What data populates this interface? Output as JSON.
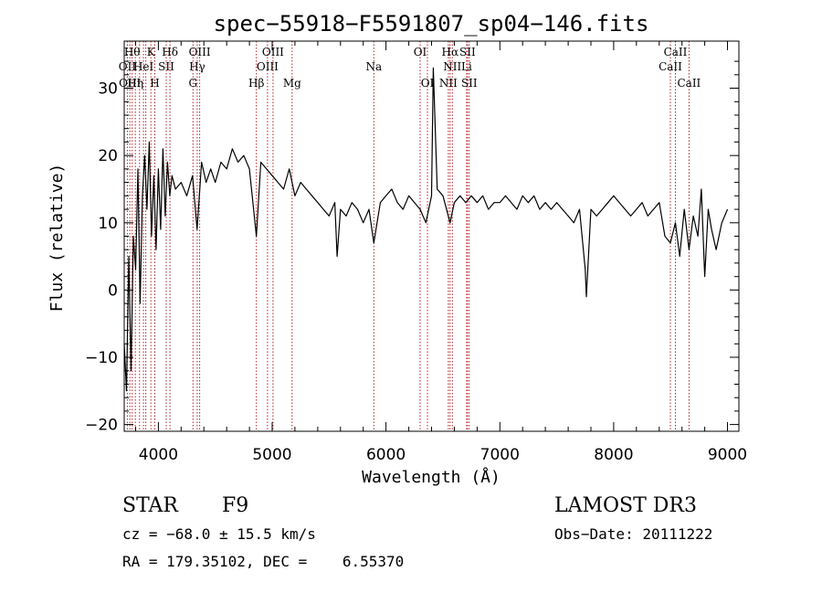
{
  "chart_data": {
    "type": "line",
    "title": "spec−55918−F5591807_sp04−146.fits",
    "xlabel": "Wavelength (Å)",
    "ylabel": "Flux (relative)",
    "xlim": [
      3700,
      9100
    ],
    "ylim": [
      -21,
      37
    ],
    "xticks": [
      4000,
      5000,
      6000,
      7000,
      8000,
      9000
    ],
    "yticks": [
      -20,
      -10,
      0,
      10,
      20,
      30
    ],
    "ytick_labels": [
      "−20",
      "−10",
      "0",
      "10",
      "20",
      "30"
    ],
    "series": [
      {
        "name": "flux",
        "x": [
          3700,
          3720,
          3740,
          3760,
          3780,
          3800,
          3820,
          3840,
          3860,
          3880,
          3900,
          3920,
          3940,
          3960,
          3980,
          4000,
          4020,
          4040,
          4060,
          4080,
          4100,
          4120,
          4150,
          4200,
          4250,
          4300,
          4340,
          4380,
          4420,
          4460,
          4500,
          4550,
          4600,
          4650,
          4700,
          4750,
          4800,
          4861,
          4900,
          4950,
          5000,
          5050,
          5100,
          5150,
          5200,
          5250,
          5300,
          5350,
          5400,
          5450,
          5500,
          5550,
          5570,
          5600,
          5650,
          5700,
          5750,
          5800,
          5850,
          5893,
          5950,
          6000,
          6050,
          6100,
          6150,
          6200,
          6250,
          6300,
          6350,
          6400,
          6415,
          6450,
          6500,
          6563,
          6600,
          6650,
          6700,
          6750,
          6800,
          6850,
          6900,
          6950,
          7000,
          7050,
          7100,
          7150,
          7200,
          7250,
          7300,
          7350,
          7400,
          7450,
          7500,
          7550,
          7600,
          7650,
          7700,
          7750,
          7760,
          7800,
          7850,
          7900,
          7950,
          8000,
          8050,
          8100,
          8150,
          8200,
          8250,
          8300,
          8350,
          8400,
          8450,
          8498,
          8542,
          8580,
          8620,
          8662,
          8700,
          8740,
          8770,
          8800,
          8830,
          8860,
          8900,
          8950,
          9000
        ],
        "y": [
          -8,
          -15,
          5,
          -12,
          8,
          3,
          18,
          -2,
          14,
          20,
          12,
          22,
          8,
          17,
          6,
          18,
          9,
          21,
          11,
          19,
          14,
          17,
          15,
          16,
          14,
          17,
          9,
          19,
          16,
          18,
          16,
          19,
          18,
          21,
          19,
          20,
          18,
          8,
          19,
          18,
          17,
          16,
          15,
          18,
          14,
          16,
          15,
          14,
          13,
          12,
          11,
          13,
          5,
          12,
          11,
          13,
          12,
          10,
          12,
          7,
          13,
          14,
          15,
          13,
          12,
          14,
          13,
          12,
          10,
          14,
          33,
          15,
          14,
          10,
          13,
          14,
          13,
          14,
          13,
          14,
          12,
          13,
          13,
          14,
          13,
          12,
          14,
          13,
          14,
          12,
          13,
          12,
          13,
          12,
          11,
          10,
          12,
          3,
          -1,
          12,
          11,
          12,
          13,
          14,
          13,
          12,
          11,
          12,
          13,
          11,
          12,
          13,
          8,
          7,
          10,
          5,
          12,
          6,
          11,
          8,
          15,
          2,
          12,
          9,
          6,
          10,
          12
        ]
      }
    ],
    "lines": [
      {
        "wavelength": 3727,
        "label": "OII"
      },
      {
        "wavelength": 3750,
        "label": "OIII"
      },
      {
        "wavelength": 3770,
        "label": "Hθ"
      },
      {
        "wavelength": 3798,
        "label": "Hη"
      },
      {
        "wavelength": 3835,
        "label": "Hη"
      },
      {
        "wavelength": 3869,
        "label": "HeI"
      },
      {
        "wavelength": 3889,
        "label": "HeI"
      },
      {
        "wavelength": 3934,
        "label": "K"
      },
      {
        "wavelength": 3969,
        "label": "H"
      },
      {
        "wavelength": 4069,
        "label": "SII"
      },
      {
        "wavelength": 4102,
        "label": "Hδ"
      },
      {
        "wavelength": 4304,
        "label": "G"
      },
      {
        "wavelength": 4341,
        "label": "Hγ"
      },
      {
        "wavelength": 4363,
        "label": "OIII"
      },
      {
        "wavelength": 4861,
        "label": "Hβ"
      },
      {
        "wavelength": 4959,
        "label": "OIII"
      },
      {
        "wavelength": 5007,
        "label": "OIII"
      },
      {
        "wavelength": 5175,
        "label": "Mg"
      },
      {
        "wavelength": 5893,
        "label": "Na"
      },
      {
        "wavelength": 6300,
        "label": "OI"
      },
      {
        "wavelength": 6364,
        "label": "OI"
      },
      {
        "wavelength": 6548,
        "label": "NII"
      },
      {
        "wavelength": 6563,
        "label": "Hα"
      },
      {
        "wavelength": 6583,
        "label": "NII"
      },
      {
        "wavelength": 6708,
        "label": "Li"
      },
      {
        "wavelength": 6716,
        "label": "SII"
      },
      {
        "wavelength": 6731,
        "label": "SII"
      },
      {
        "wavelength": 8498,
        "label": "CaII"
      },
      {
        "wavelength": 8542,
        "label": "CaII"
      },
      {
        "wavelength": 8662,
        "label": "CaII"
      }
    ],
    "line_labels": [
      {
        "text": "Hθ",
        "wavelength": 3770,
        "row": 0
      },
      {
        "text": "K",
        "wavelength": 3934,
        "row": 0
      },
      {
        "text": "Hδ",
        "wavelength": 4102,
        "row": 0
      },
      {
        "text": "OIII",
        "wavelength": 4363,
        "row": 0
      },
      {
        "text": "OIII",
        "wavelength": 5007,
        "row": 0
      },
      {
        "text": "OI",
        "wavelength": 6300,
        "row": 0
      },
      {
        "text": "Hα",
        "wavelength": 6563,
        "row": 0
      },
      {
        "text": "SII",
        "wavelength": 6716,
        "row": 0
      },
      {
        "text": "CaII",
        "wavelength": 8542,
        "row": 0
      },
      {
        "text": "OII",
        "wavelength": 3727,
        "row": 1
      },
      {
        "text": "HeI",
        "wavelength": 3869,
        "row": 1
      },
      {
        "text": "SII",
        "wavelength": 4069,
        "row": 1
      },
      {
        "text": "Hγ",
        "wavelength": 4341,
        "row": 1
      },
      {
        "text": "OIII",
        "wavelength": 4959,
        "row": 1
      },
      {
        "text": "Na",
        "wavelength": 5893,
        "row": 1
      },
      {
        "text": "NII",
        "wavelength": 6583,
        "row": 1
      },
      {
        "text": "Li",
        "wavelength": 6708,
        "row": 1
      },
      {
        "text": "CaII",
        "wavelength": 8498,
        "row": 1
      },
      {
        "text": "OIII",
        "wavelength": 3750,
        "row": 2
      },
      {
        "text": "Hη",
        "wavelength": 3798,
        "row": 2
      },
      {
        "text": "H",
        "wavelength": 3969,
        "row": 2
      },
      {
        "text": "G",
        "wavelength": 4304,
        "row": 2
      },
      {
        "text": "Hβ",
        "wavelength": 4861,
        "row": 2
      },
      {
        "text": "Mg",
        "wavelength": 5175,
        "row": 2
      },
      {
        "text": "OI",
        "wavelength": 6364,
        "row": 2
      },
      {
        "text": "NII",
        "wavelength": 6548,
        "row": 2
      },
      {
        "text": "SII",
        "wavelength": 6731,
        "row": 2
      },
      {
        "text": "CaII",
        "wavelength": 8662,
        "row": 2
      }
    ]
  },
  "info": {
    "object_type": "STAR",
    "subclass": "F9",
    "survey": "LAMOST DR3",
    "redshift": "cz = −68.0 ± 15.5 km/s",
    "obs_date": "Obs−Date: 20111222",
    "coords": "RA = 179.35102, DEC =    6.55370"
  }
}
